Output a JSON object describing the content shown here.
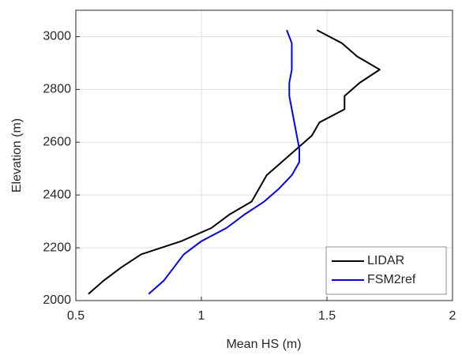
{
  "chart_data": {
    "type": "line",
    "xlabel": "Mean HS (m)",
    "ylabel": "Elevation (m)",
    "xlim": [
      0.5,
      2
    ],
    "xticks": [
      0.5,
      1,
      1.5,
      2
    ],
    "ylim": [
      2000,
      3100
    ],
    "yticks": [
      2000,
      2200,
      2400,
      2600,
      2800,
      3000
    ],
    "grid": true,
    "legend": "lower right",
    "series": [
      {
        "name": "LIDAR",
        "color": "#000000",
        "x": [
          0.55,
          0.61,
          0.68,
          0.76,
          0.92,
          1.04,
          1.11,
          1.2,
          1.23,
          1.26,
          1.32,
          1.38,
          1.44,
          1.47,
          1.57,
          1.57,
          1.63,
          1.71,
          1.62,
          1.56,
          1.46
        ],
        "y": [
          2025,
          2075,
          2125,
          2175,
          2225,
          2275,
          2325,
          2375,
          2425,
          2475,
          2525,
          2575,
          2625,
          2675,
          2725,
          2775,
          2825,
          2875,
          2925,
          2975,
          3025
        ]
      },
      {
        "name": "FSM2ref",
        "color": "#0000ff",
        "x": [
          0.79,
          0.85,
          0.89,
          0.93,
          1.0,
          1.1,
          1.17,
          1.25,
          1.31,
          1.36,
          1.39,
          1.39,
          1.38,
          1.37,
          1.36,
          1.35,
          1.35,
          1.36,
          1.36,
          1.36,
          1.34
        ],
        "y": [
          2025,
          2075,
          2125,
          2175,
          2225,
          2275,
          2325,
          2375,
          2425,
          2475,
          2525,
          2575,
          2625,
          2675,
          2725,
          2775,
          2825,
          2875,
          2925,
          2975,
          3025
        ]
      }
    ]
  }
}
